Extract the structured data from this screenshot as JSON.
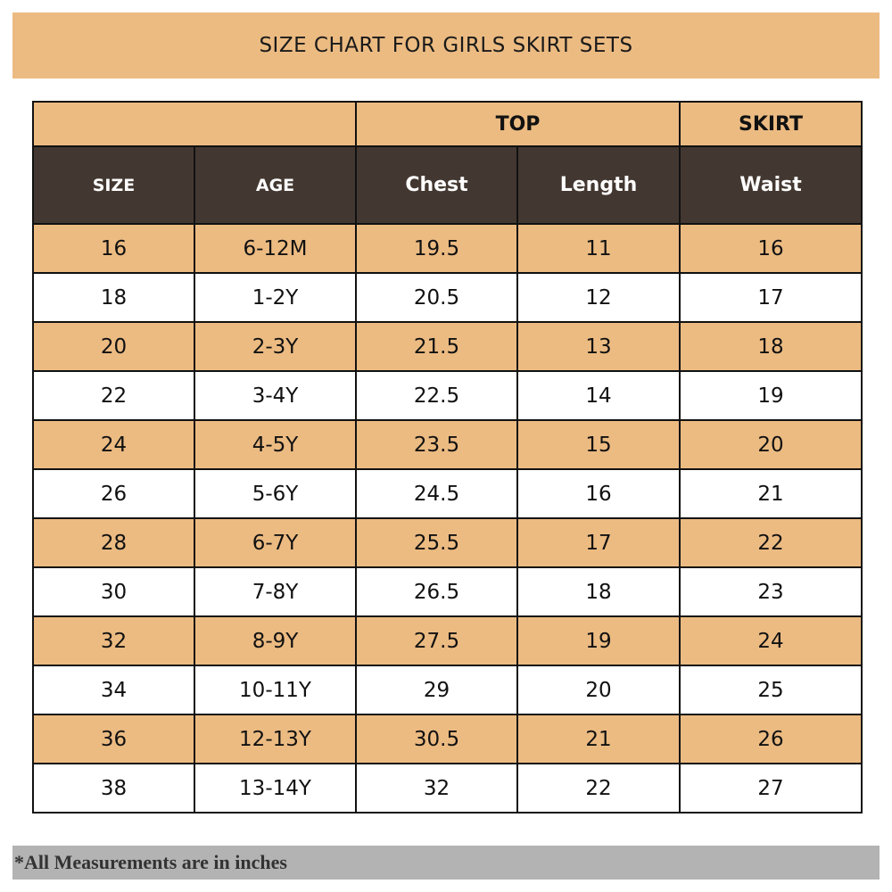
{
  "title": "SIZE CHART FOR GIRLS SKIRT SETS",
  "colors": {
    "accent": "#ECBB82",
    "header_dark": "#433831",
    "footer_gray": "#B3B3B3"
  },
  "groups": {
    "top": "TOP",
    "skirt": "SKIRT"
  },
  "columns": [
    "SIZE",
    "AGE",
    "Chest",
    "Length",
    "Waist"
  ],
  "rows": [
    [
      "16",
      "6-12M",
      "19.5",
      "11",
      "16"
    ],
    [
      "18",
      "1-2Y",
      "20.5",
      "12",
      "17"
    ],
    [
      "20",
      "2-3Y",
      "21.5",
      "13",
      "18"
    ],
    [
      "22",
      "3-4Y",
      "22.5",
      "14",
      "19"
    ],
    [
      "24",
      "4-5Y",
      "23.5",
      "15",
      "20"
    ],
    [
      "26",
      "5-6Y",
      "24.5",
      "16",
      "21"
    ],
    [
      "28",
      "6-7Y",
      "25.5",
      "17",
      "22"
    ],
    [
      "30",
      "7-8Y",
      "26.5",
      "18",
      "23"
    ],
    [
      "32",
      "8-9Y",
      "27.5",
      "19",
      "24"
    ],
    [
      "34",
      "10-11Y",
      "29",
      "20",
      "25"
    ],
    [
      "36",
      "12-13Y",
      "30.5",
      "21",
      "26"
    ],
    [
      "38",
      "13-14Y",
      "32",
      "22",
      "27"
    ]
  ],
  "footer": "*All Measurements are in inches"
}
